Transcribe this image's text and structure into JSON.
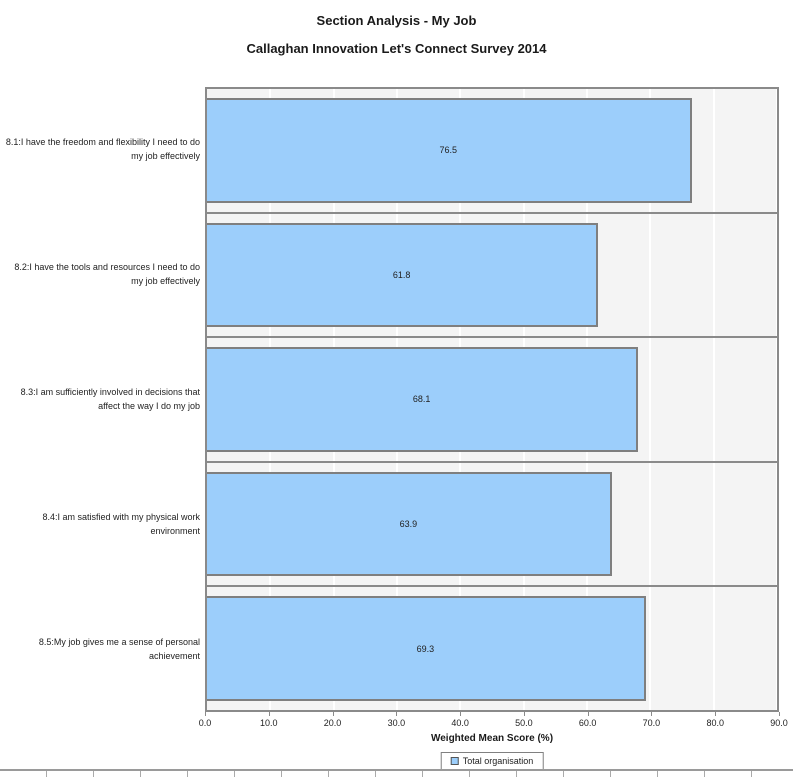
{
  "header": {
    "title": "Section Analysis - My Job",
    "subtitle": "Callaghan Innovation Let's Connect  Survey 2014"
  },
  "chart_data": {
    "type": "bar",
    "orientation": "horizontal",
    "title": "Section Analysis - My Job",
    "subtitle": "Callaghan Innovation Let's Connect  Survey 2014",
    "categories": [
      "8.1:I have the freedom and flexibility I need to do my job effectively",
      "8.2:I have the tools and resources I need to do my job effectively",
      "8.3:I am sufficiently involved in decisions that affect the way I do my job",
      "8.4:I am satisfied with my physical work environment",
      "8.5:My job gives me a sense of personal achievement"
    ],
    "series": [
      {
        "name": "Total organisation",
        "values": [
          76.5,
          61.8,
          68.1,
          63.9,
          69.3
        ]
      }
    ],
    "value_labels": [
      "76.5",
      "61.8",
      "68.1",
      "63.9",
      "69.3"
    ],
    "xlabel": "Weighted Mean Score (%)",
    "xlim": [
      0,
      90
    ],
    "xticks": [
      0,
      10,
      20,
      30,
      40,
      50,
      60,
      70,
      80,
      90
    ],
    "xtick_labels": [
      "0.0",
      "10.0",
      "20.0",
      "30.0",
      "40.0",
      "50.0",
      "60.0",
      "70.0",
      "80.0",
      "90.0"
    ],
    "grid": true,
    "legend_position": "bottom",
    "colors": {
      "bar_fill": "#9ccefb",
      "bar_border": "#7f7f7f",
      "panel_background": "#f4f4f4",
      "panel_border": "#8a8a8a",
      "gridline": "#ffffff",
      "text": "#1a1a1a"
    }
  }
}
